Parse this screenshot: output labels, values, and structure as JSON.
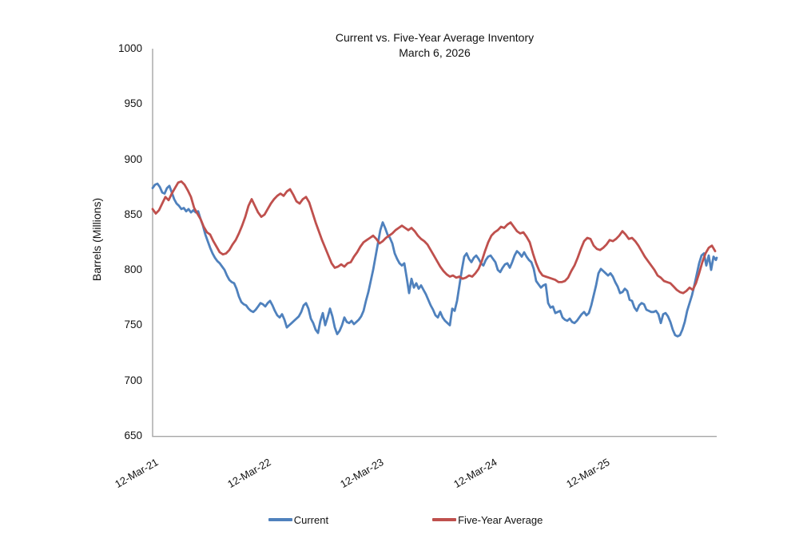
{
  "title": {
    "line1": "Current vs. Five-Year Average Inventory",
    "line2": "March 6, 2026"
  },
  "y_axis": {
    "label": "Barrels (Millions)",
    "ticks": [
      1000,
      950,
      900,
      850,
      800,
      750,
      700,
      650
    ],
    "min": 650,
    "max": 1000
  },
  "x_axis": {
    "tick_labels": [
      "12-Mar-21",
      "12-Mar-22",
      "12-Mar-23",
      "12-Mar-24",
      "12-Mar-25"
    ],
    "unit": "date, yearly ticks, weekly data"
  },
  "legend": {
    "items": [
      {
        "label": "Current",
        "color": "#4f81bd"
      },
      {
        "label": "Five-Year Average",
        "color": "#bf504d"
      }
    ]
  },
  "chart_data": {
    "type": "line",
    "title": "Current vs. Five-Year Average Inventory — March 6, 2026",
    "xlabel": "",
    "ylabel": "Barrels (Millions)",
    "ylim": [
      650,
      1000
    ],
    "x_unit": "years since 12-Mar-21",
    "x_range_years": [
      0,
      5.0
    ],
    "grid": false,
    "legend_position": "bottom",
    "series": [
      {
        "name": "Current",
        "color": "#4f81bd",
        "x_start_years": 0,
        "x_step_years": 0.021246,
        "values": [
          874,
          877,
          878,
          875,
          870,
          869,
          874,
          876,
          870,
          864,
          860,
          858,
          855,
          856,
          853,
          855,
          852,
          854,
          852,
          853,
          846,
          840,
          832,
          826,
          820,
          815,
          811,
          808,
          806,
          803,
          800,
          795,
          791,
          789,
          788,
          783,
          776,
          771,
          769,
          768,
          765,
          763,
          762,
          764,
          767,
          770,
          769,
          767,
          770,
          772,
          768,
          763,
          759,
          757,
          760,
          755,
          748,
          750,
          752,
          754,
          756,
          758,
          762,
          768,
          770,
          765,
          756,
          752,
          746,
          743,
          754,
          761,
          750,
          757,
          765,
          758,
          748,
          742,
          745,
          750,
          757,
          753,
          752,
          754,
          751,
          753,
          755,
          758,
          763,
          772,
          780,
          790,
          800,
          812,
          824,
          836,
          843,
          838,
          832,
          829,
          824,
          815,
          810,
          806,
          804,
          806,
          793,
          779,
          792,
          784,
          788,
          783,
          786,
          782,
          778,
          773,
          768,
          764,
          759,
          757,
          762,
          757,
          754,
          752,
          750,
          765,
          763,
          772,
          786,
          800,
          812,
          815,
          810,
          807,
          811,
          813,
          810,
          806,
          804,
          809,
          812,
          813,
          810,
          807,
          800,
          798,
          802,
          805,
          806,
          802,
          807,
          813,
          817,
          815,
          812,
          816,
          812,
          809,
          807,
          801,
          790,
          787,
          784,
          786,
          787,
          770,
          766,
          767,
          761,
          762,
          763,
          757,
          755,
          754,
          756,
          753,
          752,
          754,
          757,
          760,
          762,
          759,
          761,
          768,
          777,
          786,
          797,
          801,
          799,
          797,
          795,
          797,
          794,
          789,
          785,
          779,
          780,
          783,
          781,
          773,
          772,
          766,
          763,
          768,
          770,
          769,
          764,
          763,
          762,
          762,
          763,
          760,
          752,
          760,
          761,
          758,
          753,
          746,
          741,
          740,
          741,
          746,
          753,
          763,
          770,
          777,
          786,
          796,
          806,
          813,
          815,
          804,
          813,
          800,
          812,
          809,
          811
        ]
      },
      {
        "name": "Five-Year Average",
        "color": "#bf504d",
        "x_start_years": 0,
        "x_step_years": 0.028329,
        "values": [
          855,
          851,
          854,
          860,
          866,
          863,
          869,
          874,
          879,
          880,
          877,
          872,
          866,
          856,
          851,
          846,
          839,
          834,
          832,
          826,
          821,
          816,
          814,
          815,
          818,
          823,
          827,
          833,
          840,
          848,
          858,
          864,
          858,
          852,
          848,
          850,
          855,
          860,
          864,
          867,
          869,
          867,
          871,
          873,
          868,
          862,
          860,
          864,
          866,
          861,
          852,
          843,
          835,
          827,
          820,
          813,
          806,
          802,
          803,
          805,
          803,
          806,
          807,
          812,
          816,
          821,
          825,
          827,
          829,
          831,
          828,
          824,
          826,
          829,
          831,
          833,
          836,
          838,
          840,
          838,
          836,
          838,
          835,
          831,
          828,
          826,
          823,
          818,
          813,
          808,
          803,
          799,
          796,
          794,
          795,
          793,
          794,
          792,
          793,
          795,
          794,
          797,
          801,
          808,
          817,
          825,
          831,
          834,
          836,
          839,
          838,
          841,
          843,
          839,
          835,
          833,
          834,
          830,
          825,
          815,
          806,
          799,
          795,
          794,
          793,
          792,
          791,
          789,
          789,
          790,
          793,
          799,
          804,
          811,
          819,
          826,
          829,
          828,
          822,
          819,
          818,
          820,
          823,
          827,
          826,
          828,
          831,
          835,
          832,
          828,
          829,
          826,
          822,
          817,
          812,
          808,
          804,
          800,
          795,
          793,
          790,
          789,
          788,
          785,
          782,
          780,
          779,
          781,
          784,
          782,
          788,
          797,
          807,
          815,
          820,
          822,
          817
        ]
      }
    ]
  },
  "style": {
    "axis_color": "#a6a6a6",
    "background": "#ffffff"
  }
}
